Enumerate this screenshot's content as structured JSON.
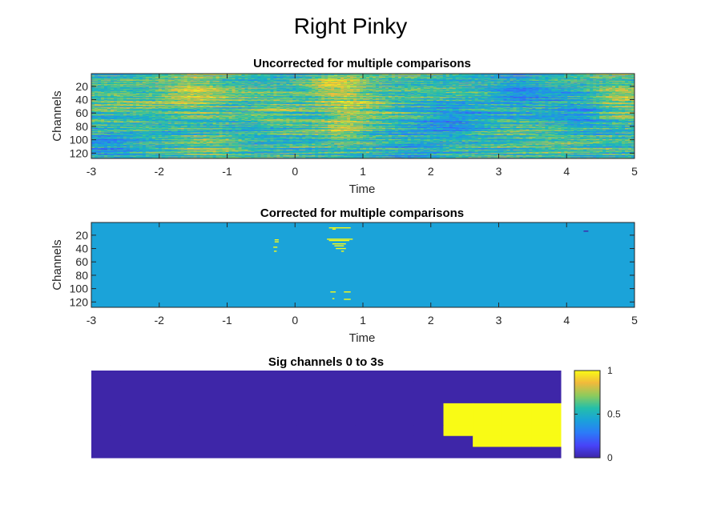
{
  "figure": {
    "title": "Right Pinky"
  },
  "colors": {
    "axis": "#262626",
    "background_mid": "#1ba3d9",
    "parula_low": "#3e26a8",
    "parula_high": "#f9fb15"
  },
  "chart_data": [
    {
      "type": "heatmap",
      "title": "Uncorrected for multiple comparisons",
      "xlabel": "Time",
      "ylabel": "Channels",
      "xlim": [
        -3,
        5
      ],
      "ylim": [
        1,
        128
      ],
      "xticks": [
        "-3",
        "-2",
        "-1",
        "0",
        "1",
        "2",
        "3",
        "4",
        "5"
      ],
      "yticks": [
        "20",
        "40",
        "60",
        "80",
        "100",
        "120"
      ],
      "y_reversed": true,
      "colormap": "parula",
      "description_values": "continuous values, mostly mid-range (green/cyan) with scattered yellow and blue streaks"
    },
    {
      "type": "heatmap",
      "title": "Corrected for multiple comparisons",
      "xlabel": "Time",
      "ylabel": "Channels",
      "xlim": [
        -3,
        5
      ],
      "ylim": [
        1,
        128
      ],
      "xticks": [
        "-3",
        "-2",
        "-1",
        "0",
        "1",
        "2",
        "3",
        "4",
        "5"
      ],
      "yticks": [
        "20",
        "40",
        "60",
        "80",
        "100",
        "120"
      ],
      "y_reversed": true,
      "colormap": "parula",
      "background_value": 0,
      "significant_segments": [
        {
          "channel": 9,
          "t_start": 0.5,
          "t_end": 0.82,
          "value": 1
        },
        {
          "channel": 11,
          "t_start": 0.55,
          "t_end": 0.6,
          "value": 1
        },
        {
          "channel": 26,
          "t_start": 0.47,
          "t_end": 0.85,
          "value": 1
        },
        {
          "channel": 28,
          "t_start": 0.5,
          "t_end": 0.8,
          "value": 1
        },
        {
          "channel": 27,
          "t_start": -0.3,
          "t_end": -0.24,
          "value": 1
        },
        {
          "channel": 30,
          "t_start": -0.3,
          "t_end": -0.24,
          "value": 1
        },
        {
          "channel": 33,
          "t_start": 0.55,
          "t_end": 0.75,
          "value": 1
        },
        {
          "channel": 36,
          "t_start": 0.58,
          "t_end": 0.72,
          "value": 1
        },
        {
          "channel": 38,
          "t_start": -0.32,
          "t_end": -0.26,
          "value": 1
        },
        {
          "channel": 40,
          "t_start": 0.6,
          "t_end": 0.75,
          "value": 1
        },
        {
          "channel": 44,
          "t_start": -0.31,
          "t_end": -0.27,
          "value": 1
        },
        {
          "channel": 44,
          "t_start": 0.68,
          "t_end": 0.72,
          "value": 1
        },
        {
          "channel": 105,
          "t_start": 0.52,
          "t_end": 0.6,
          "value": 1
        },
        {
          "channel": 105,
          "t_start": 0.72,
          "t_end": 0.82,
          "value": 1
        },
        {
          "channel": 115,
          "t_start": 0.55,
          "t_end": 0.58,
          "value": 1
        },
        {
          "channel": 116,
          "t_start": 0.72,
          "t_end": 0.82,
          "value": 1
        },
        {
          "channel": 14,
          "t_start": 4.25,
          "t_end": 4.32,
          "value": -1
        }
      ]
    },
    {
      "type": "heatmap",
      "title": "Sig channels 0 to 3s",
      "colormap": "parula",
      "clim": [
        0,
        1
      ],
      "colorbar_ticks": [
        "0",
        "0.5",
        "1"
      ],
      "rows": 8,
      "cols": 16,
      "values": [
        [
          0,
          0,
          0,
          0,
          0,
          0,
          0,
          0,
          0,
          0,
          0,
          0,
          0,
          0,
          0,
          0
        ],
        [
          0,
          0,
          0,
          0,
          0,
          0,
          0,
          0,
          0,
          0,
          0,
          0,
          0,
          0,
          0,
          0
        ],
        [
          0,
          0,
          0,
          0,
          0,
          0,
          0,
          0,
          0,
          0,
          0,
          0,
          0,
          0,
          0,
          0
        ],
        [
          0,
          0,
          0,
          0,
          0,
          0,
          0,
          0,
          0,
          0,
          0,
          0,
          1,
          1,
          1,
          1
        ],
        [
          0,
          0,
          0,
          0,
          0,
          0,
          0,
          0,
          0,
          0,
          0,
          0,
          1,
          1,
          1,
          1
        ],
        [
          0,
          0,
          0,
          0,
          0,
          0,
          0,
          0,
          0,
          0,
          0,
          0,
          1,
          1,
          1,
          1
        ],
        [
          0,
          0,
          0,
          0,
          0,
          0,
          0,
          0,
          0,
          0,
          0,
          0,
          0,
          1,
          1,
          1
        ],
        [
          0,
          0,
          0,
          0,
          0,
          0,
          0,
          0,
          0,
          0,
          0,
          0,
          0,
          0,
          0,
          0
        ]
      ]
    }
  ]
}
